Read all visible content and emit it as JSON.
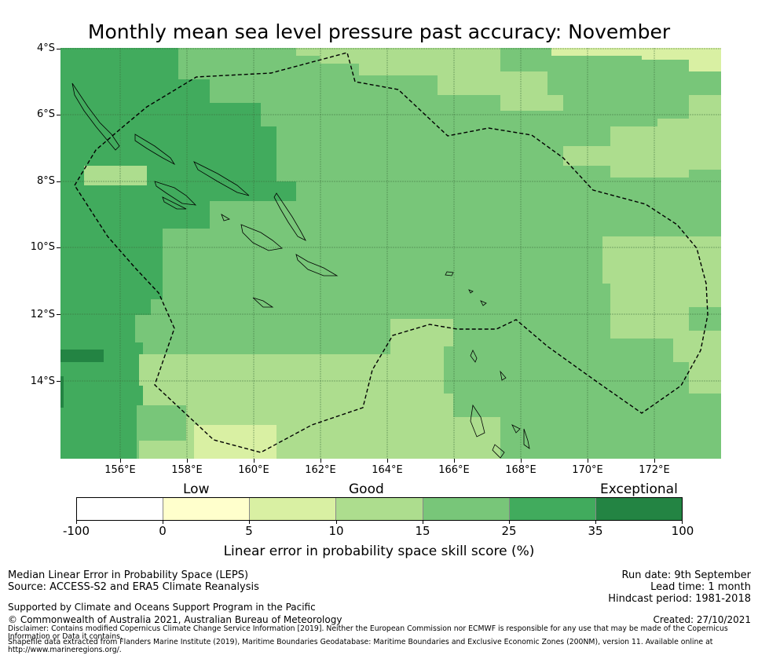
{
  "title": "Monthly mean sea level pressure past accuracy: November",
  "map": {
    "lat_labels": [
      "4°S",
      "6°S",
      "8°S",
      "10°S",
      "12°S",
      "14°S"
    ],
    "lon_labels": [
      "156°E",
      "158°E",
      "160°E",
      "162°E",
      "164°E",
      "166°E",
      "168°E",
      "170°E",
      "172°E"
    ],
    "lon_range": [
      154.2,
      174.0
    ],
    "lat_range": [
      -16.3,
      -4.0
    ],
    "eez_boundary": "dashed"
  },
  "colorbar": {
    "categories": [
      "Low",
      "Good",
      "Exceptional"
    ],
    "ticks": [
      "-100",
      "0",
      "5",
      "10",
      "15",
      "25",
      "35",
      "100"
    ],
    "colors": [
      "#ffffff",
      "#ffffcc",
      "#d9f0a3",
      "#addd8e",
      "#78c679",
      "#41ab5d",
      "#238443"
    ],
    "label": "Linear error in probability space skill score (%)"
  },
  "footer": {
    "line1": "Median Linear Error in Probability Space (LEPS)",
    "line2": "Source: ACCESS-S2 and ERA5 Climate Reanalysis",
    "support": "Supported by Climate and Oceans Support Program in the Pacific",
    "copyright": "© Commonwealth of Australia 2021, Australian Bureau of Meteorology",
    "disclaimer": "Disclaimer: Contains modified Copernicus Climate Change Service Information [2019]. Neither the European Commission nor ECMWF is responsible for any use that may be made of the Copernicus Information or Data it contains.",
    "shapefile": "Shapefile data extracted from Flanders Marine Institute (2019), Maritime Boundaries Geodatabase: Maritime Boundaries and Exclusive Economic Zones (200NM), version 11. Available online at http://www.marineregions.org/.",
    "run_date": "Run date: 9th September",
    "lead_time": "Lead time: 1 month",
    "hindcast": "Hindcast period: 1981-2018",
    "created": "Created: 27/10/2021"
  }
}
